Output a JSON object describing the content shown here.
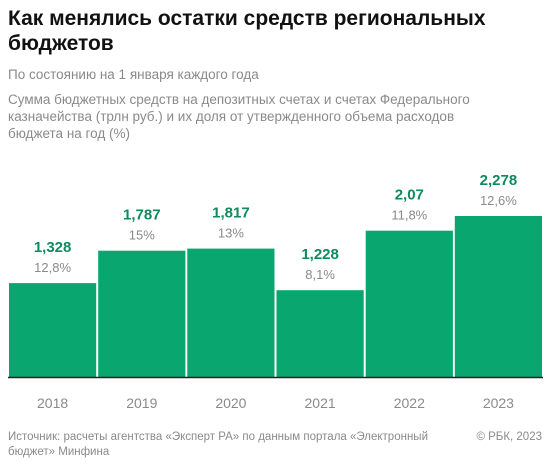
{
  "header": {
    "title": "Как менялись остатки средств региональных бюджетов",
    "subtitle": "По состоянию на 1 января каждого года",
    "description": "Сумма бюджетных средств на депозитных счетах и счетах Федерального казначейства (трлн руб.) и их доля от утвержденного объема расходов бюджета на год (%)"
  },
  "chart_data": {
    "type": "bar",
    "categories": [
      "2018",
      "2019",
      "2020",
      "2021",
      "2022",
      "2023"
    ],
    "values": [
      1.328,
      1.787,
      1.817,
      1.228,
      2.07,
      2.278
    ],
    "value_labels": [
      "1,328",
      "1,787",
      "1,817",
      "1,228",
      "2,07",
      "2,278"
    ],
    "share_labels": [
      "12,8%",
      "15%",
      "13%",
      "8,1%",
      "11,8%",
      "12,6%"
    ],
    "ylim": [
      0,
      2.278
    ],
    "grid": false,
    "bar_color": "#0aa66f",
    "value_color": "#0e8a5c",
    "share_color": "#8a8a8a",
    "axis_color": "#222222"
  },
  "footer": {
    "source": "Источник: расчеты агентства «Эксперт РА» по данным портала «Электронный бюджет» Минфина",
    "copyright": "© РБК, 2023"
  }
}
